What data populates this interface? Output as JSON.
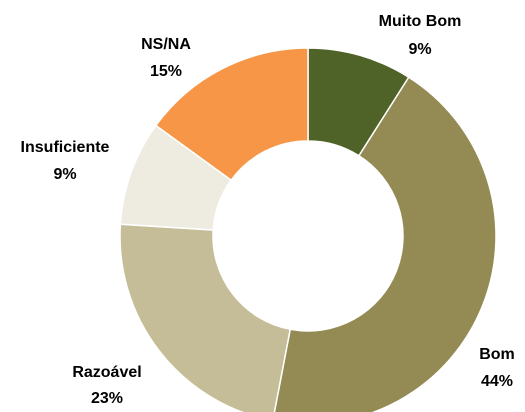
{
  "chart_data": {
    "type": "donut",
    "categories": [
      "Muito Bom",
      "Bom",
      "Razoável",
      "Insuficiente",
      "NS/NA"
    ],
    "values": [
      9,
      44,
      23,
      9,
      15
    ],
    "value_labels": [
      "9%",
      "44%",
      "23%",
      "9%",
      "15%"
    ],
    "colors": [
      "#4f6228",
      "#948a54",
      "#c4bd97",
      "#eeece1",
      "#f79646"
    ]
  }
}
